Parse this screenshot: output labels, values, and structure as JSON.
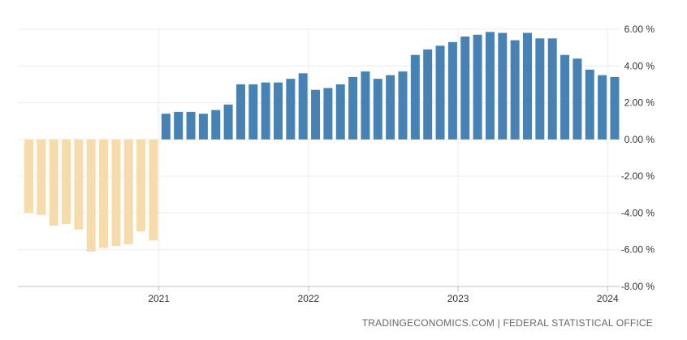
{
  "chart_data": {
    "type": "bar",
    "ylim": [
      -8,
      6
    ],
    "y_ticks": [
      "6.00 %",
      "4.00 %",
      "2.00 %",
      "0.00 %",
      "-2.00 %",
      "-4.00 %",
      "-6.00 %",
      "-8.00 %"
    ],
    "x_ticks": [
      "2021",
      "2022",
      "2023",
      "2024"
    ],
    "grid": true,
    "colors": {
      "negative": "#F5DCAA",
      "positive": "#4682B4",
      "grid": "#ececec",
      "axis": "#c0c0c0"
    },
    "series": [
      {
        "values": [
          -4.0,
          -4.1,
          -4.7,
          -4.6,
          -4.9,
          -6.1,
          -5.9,
          -5.8,
          -5.7,
          -5.0,
          -5.5,
          1.4,
          1.5,
          1.5,
          1.4,
          1.6,
          1.9,
          3.0,
          3.0,
          3.1,
          3.1,
          3.3,
          3.6,
          2.7,
          2.8,
          3.0,
          3.4,
          3.7,
          3.3,
          3.5,
          3.7,
          4.6,
          4.9,
          5.1,
          5.3,
          5.6,
          5.7,
          5.85,
          5.8,
          5.4,
          5.8,
          5.5,
          5.5,
          4.6,
          4.4,
          3.8,
          3.5,
          3.4
        ]
      }
    ]
  },
  "source": "TRADINGECONOMICS.COM | FEDERAL STATISTICAL OFFICE"
}
